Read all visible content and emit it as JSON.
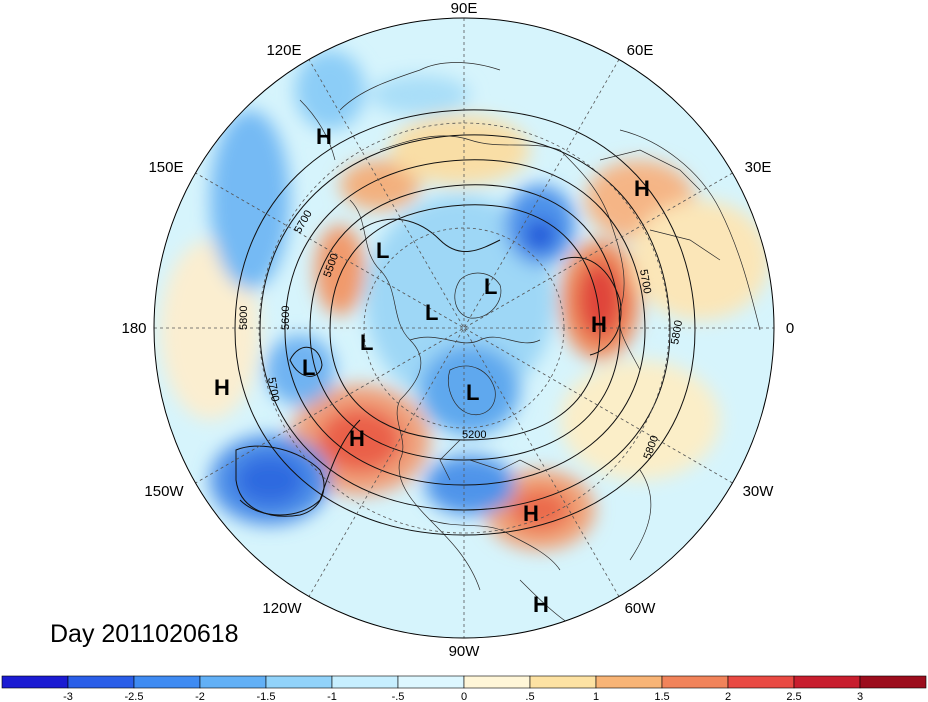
{
  "date_label": "Day 2011020618",
  "longitude_labels": {
    "e90": "90E",
    "e60": "60E",
    "e30": "30E",
    "zero": "0",
    "w30": "30W",
    "w60": "60W",
    "w90": "90W",
    "w120": "120W",
    "w150": "150W",
    "deg180": "180",
    "e150": "150E",
    "e120": "120E"
  },
  "pressure_centers": {
    "h1": "H",
    "h2": "H",
    "h3": "H",
    "h4": "H",
    "h5": "H",
    "h6": "H",
    "h7": "H",
    "l1": "L",
    "l2": "L",
    "l3": "L",
    "l4": "L",
    "l5": "L",
    "l6": "L"
  },
  "contour_labels": {
    "c1": "5700",
    "c2": "5500",
    "c3": "5800",
    "c4": "5600",
    "c5": "5700",
    "c6": "5200",
    "c7": "5700",
    "c8": "5800",
    "c9": "5800"
  },
  "colorbar": {
    "colors": [
      "#1b1bd2",
      "#2a5ee8",
      "#3f8bf2",
      "#62b0f6",
      "#92d3fa",
      "#c7efff",
      "#ddf7ff",
      "#fff6d8",
      "#fde2a3",
      "#f8b476",
      "#f1835a",
      "#e94a43",
      "#c81e2e",
      "#9c0d1d"
    ],
    "ticks": [
      "-3",
      "-2.5",
      "-2",
      "-1.5",
      "-1",
      "-.5",
      "0",
      ".5",
      "1",
      "1.5",
      "2",
      "2.5",
      "3"
    ]
  }
}
